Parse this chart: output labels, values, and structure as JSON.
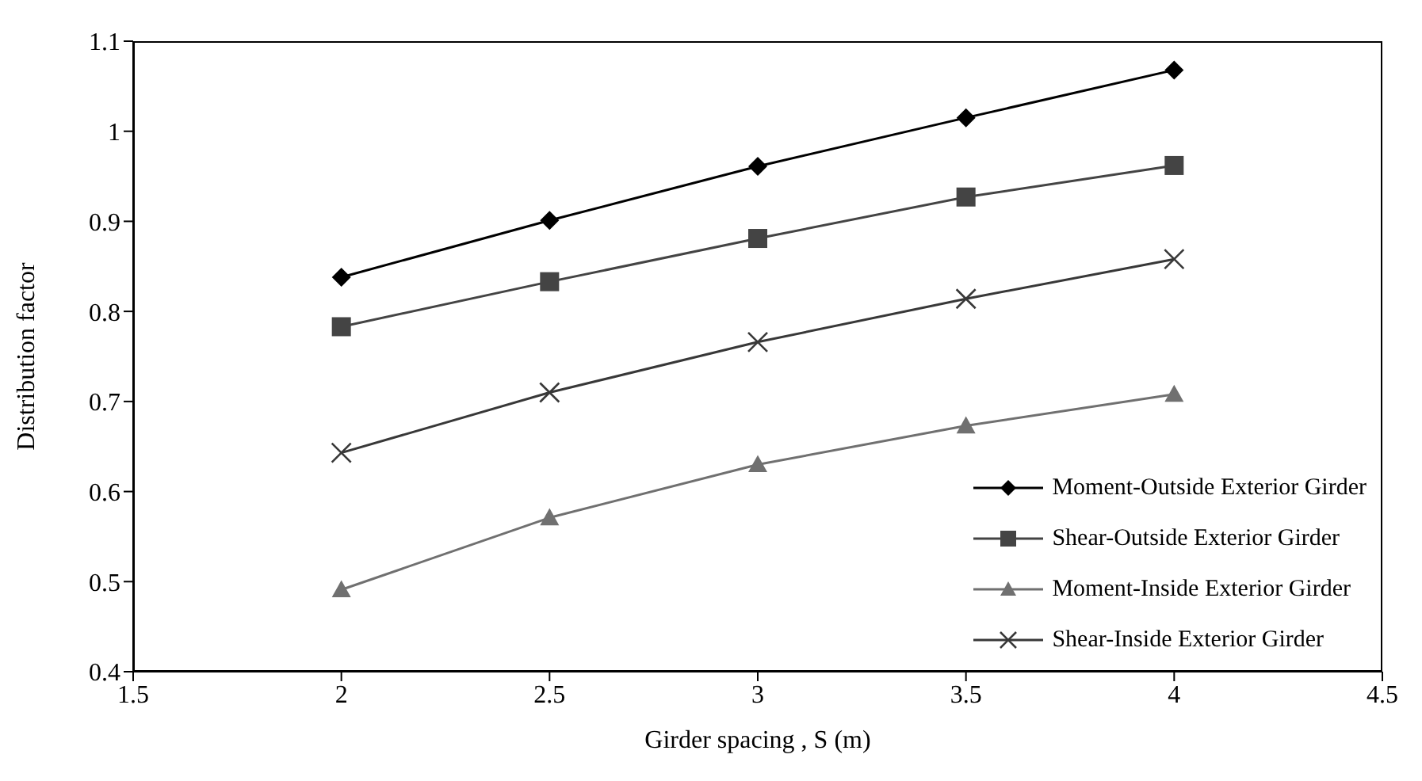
{
  "chart_data": {
    "type": "line",
    "xlabel": "Girder spacing , S (m)",
    "ylabel": "Distribution factor",
    "x": [
      2,
      2.5,
      3,
      3.5,
      4
    ],
    "series": [
      {
        "name": "Moment-Outside Exterior Girder",
        "color": "#000000",
        "marker": "diamond",
        "values": [
          0.838,
          0.901,
          0.961,
          1.015,
          1.068
        ]
      },
      {
        "name": "Shear-Outside Exterior Girder",
        "color": "#444444",
        "marker": "square",
        "values": [
          0.783,
          0.833,
          0.881,
          0.927,
          0.962
        ]
      },
      {
        "name": "Moment-Inside Exterior Girder",
        "color": "#707070",
        "marker": "triangle",
        "values": [
          0.491,
          0.571,
          0.63,
          0.673,
          0.708
        ]
      },
      {
        "name": "Shear-Inside Exterior Girder",
        "color": "#383838",
        "marker": "cross",
        "values": [
          0.643,
          0.71,
          0.766,
          0.814,
          0.858
        ]
      }
    ],
    "xlim": [
      1.5,
      4.5
    ],
    "xticks": [
      1.5,
      2,
      2.5,
      3,
      3.5,
      4,
      4.5
    ],
    "ylim": [
      0.4,
      1.1
    ],
    "yticks": [
      0.4,
      0.5,
      0.6,
      0.7,
      0.8,
      0.9,
      1,
      1.1
    ],
    "grid": false,
    "legend": "bottom right",
    "line_style": "solid"
  }
}
